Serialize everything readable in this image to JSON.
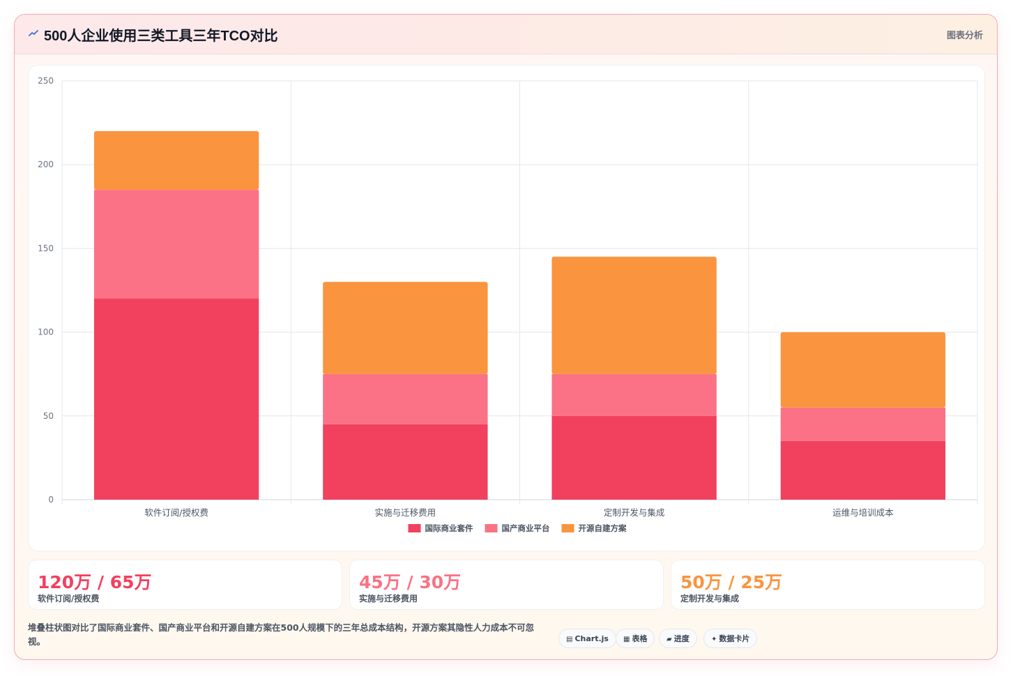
{
  "header": {
    "title": "500人企业使用三类工具三年TCO对比",
    "tag": "图表分析"
  },
  "colors": {
    "series_intl": "#f2405f",
    "series_domestic": "#fb7185",
    "series_open": "#fa943f"
  },
  "chart_data": {
    "type": "bar",
    "stacked": true,
    "categories": [
      "软件订阅/授权费",
      "实施与迁移费用",
      "定制开发与集成",
      "运维与培训成本"
    ],
    "series": [
      {
        "name": "国际商业套件",
        "color": "#f2405f",
        "values": [
          120,
          45,
          50,
          35
        ]
      },
      {
        "name": "国产商业平台",
        "color": "#fb7185",
        "values": [
          65,
          30,
          25,
          20
        ]
      },
      {
        "name": "开源自建方案",
        "color": "#fa943f",
        "values": [
          35,
          55,
          70,
          45
        ]
      }
    ],
    "ylim": [
      0,
      250
    ],
    "yticks": [
      0,
      50,
      100,
      150,
      200,
      250
    ],
    "grid": true,
    "legend": "bottom"
  },
  "stats": [
    {
      "value": "120万 / 65万",
      "label": "软件订阅/授权费",
      "color": "#f2405f"
    },
    {
      "value": "45万 / 30万",
      "label": "实施与迁移费用",
      "color": "#fb7185"
    },
    {
      "value": "50万 / 25万",
      "label": "定制开发与集成",
      "color": "#fa943f"
    }
  ],
  "footer": {
    "description": "堆叠柱状图对比了国际商业套件、国产商业平台和开源自建方案在500人规模下的三年总成本结构，开源方案其隐性人力成本不可忽视。",
    "chips": [
      {
        "icon": "▤",
        "icon_name": "chart-icon",
        "label": "Chart.js"
      },
      {
        "icon": "▦",
        "icon_name": "table-icon",
        "label": "表格"
      },
      {
        "icon": "▰",
        "icon_name": "progress-icon",
        "label": "进度"
      },
      {
        "icon": "✦",
        "icon_name": "sparkle-icon",
        "label": "数据卡片"
      }
    ]
  }
}
